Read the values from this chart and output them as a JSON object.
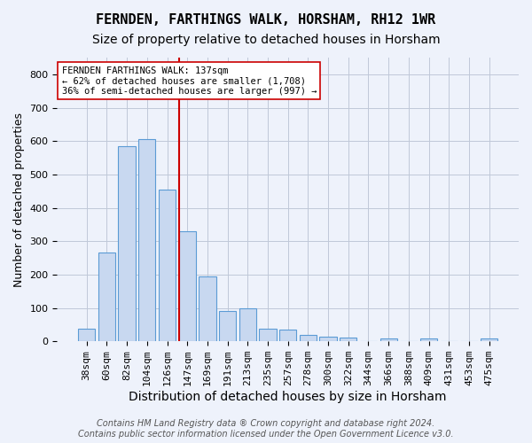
{
  "title": "FERNDEN, FARTHINGS WALK, HORSHAM, RH12 1WR",
  "subtitle": "Size of property relative to detached houses in Horsham",
  "xlabel": "Distribution of detached houses by size in Horsham",
  "ylabel": "Number of detached properties",
  "categories": [
    "38sqm",
    "60sqm",
    "82sqm",
    "104sqm",
    "126sqm",
    "147sqm",
    "169sqm",
    "191sqm",
    "213sqm",
    "235sqm",
    "257sqm",
    "278sqm",
    "300sqm",
    "322sqm",
    "344sqm",
    "366sqm",
    "388sqm",
    "409sqm",
    "431sqm",
    "453sqm",
    "475sqm"
  ],
  "values": [
    37,
    265,
    585,
    605,
    455,
    330,
    195,
    90,
    100,
    37,
    35,
    20,
    15,
    10,
    0,
    8,
    0,
    8,
    0,
    0,
    8
  ],
  "bar_color": "#c8d8f0",
  "bar_edge_color": "#5b9bd5",
  "vline_x_index": 5,
  "vline_color": "#cc0000",
  "annotation_line1": "FERNDEN FARTHINGS WALK: 137sqm",
  "annotation_line2": "← 62% of detached houses are smaller (1,708)",
  "annotation_line3": "36% of semi-detached houses are larger (997) →",
  "annotation_box_color": "#ffffff",
  "annotation_box_edge": "#cc0000",
  "footer": "Contains HM Land Registry data ® Crown copyright and database right 2024.\nContains public sector information licensed under the Open Government Licence v3.0.",
  "bg_color": "#eef2fb",
  "plot_bg_color": "#eef2fb",
  "grid_color": "#c0c8d8",
  "ylim": [
    0,
    850
  ],
  "yticks": [
    0,
    100,
    200,
    300,
    400,
    500,
    600,
    700,
    800
  ],
  "title_fontsize": 11,
  "subtitle_fontsize": 10,
  "xlabel_fontsize": 10,
  "ylabel_fontsize": 9,
  "tick_fontsize": 8,
  "footer_fontsize": 7,
  "annotation_fontsize": 7.5
}
